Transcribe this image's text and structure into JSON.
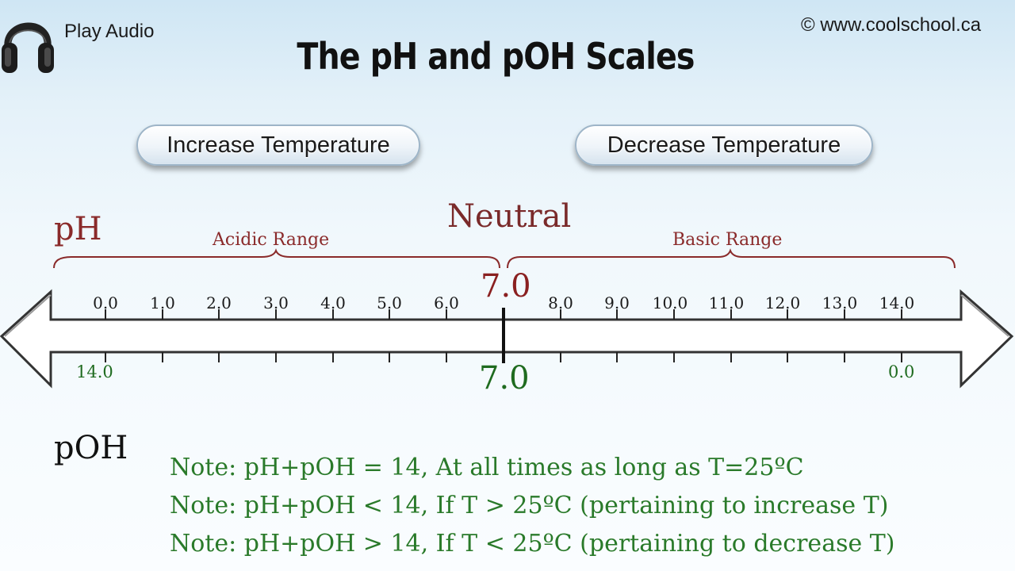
{
  "header": {
    "play_audio": "Play Audio",
    "copyright": "© www.coolschool.ca",
    "title": "The pH and pOH Scales",
    "headphones_icon": "headphones-icon"
  },
  "buttons": {
    "increase": "Increase Temperature",
    "decrease": "Decrease Temperature"
  },
  "scale": {
    "ph_label": "pH",
    "poh_label": "pOH",
    "neutral": "Neutral",
    "acidic": "Acidic Range",
    "basic": "Basic Range",
    "ph_neutral_value": "7.0",
    "poh_neutral_value": "7.0",
    "ph_ticks": [
      "0.0",
      "1.0",
      "2.0",
      "3.0",
      "4.0",
      "5.0",
      "6.0",
      "8.0",
      "9.0",
      "10.0",
      "11.0",
      "12.0",
      "13.0",
      "14.0"
    ],
    "poh_left": "14.0",
    "poh_right": "0.0",
    "ph_color": "#8a2a2a",
    "poh_color": "#1f6b1f"
  },
  "notes": [
    "Note: pH+pOH = 14,  At all times as long as T=25ºC",
    "Note: pH+pOH < 14,  If T > 25ºC (pertaining to increase T)",
    "Note: pH+pOH > 14,  If T < 25ºC (pertaining to decrease T)"
  ]
}
